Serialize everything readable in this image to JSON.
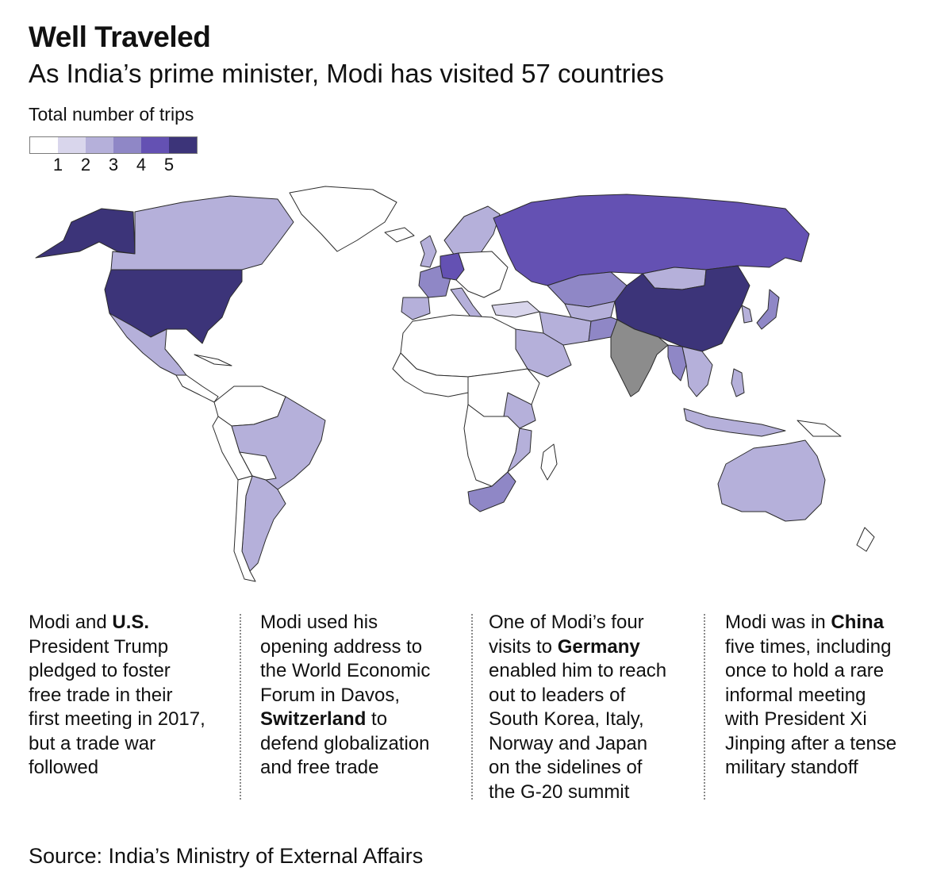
{
  "header": {
    "title": "Well Traveled",
    "subtitle": "As India’s prime minister, Modi has visited 57 countries"
  },
  "legend": {
    "title": "Total number of trips",
    "labels": [
      "1",
      "2",
      "3",
      "4",
      "5"
    ],
    "colors": [
      "#ffffff",
      "#d9d6ec",
      "#b5b0da",
      "#8f87c6",
      "#6451b3",
      "#3c3479"
    ]
  },
  "map": {
    "india_color": "#8c8c8c",
    "country_trips": {
      "United States": 5,
      "China": 5,
      "Russia": 4,
      "Germany": 4,
      "Japan": 3,
      "France": 3,
      "South Africa": 3,
      "Canada": 2,
      "Mexico": 2,
      "Brazil": 2,
      "Argentina": 2,
      "Australia": 2,
      "Mongolia": 2,
      "Kazakhstan": 3,
      "Afghanistan": 3,
      "Iran": 2,
      "Saudi Arabia": 2,
      "Indonesia": 2,
      "Philippines": 2,
      "Kenya": 2,
      "Mozambique": 2,
      "United Kingdom": 2,
      "Sweden": 2,
      "Norway": 2,
      "Finland": 2,
      "Spain": 2,
      "Italy": 2,
      "Nepal": 4,
      "Bangladesh": 3,
      "Myanmar": 3,
      "Vietnam": 2,
      "Singapore": 3,
      "South Korea": 2,
      "Uzbekistan": 2,
      "Israel": 2
    }
  },
  "notes": [
    {
      "parts": [
        {
          "text": "Modi and "
        },
        {
          "text": "U.S.",
          "bold": true
        },
        {
          "text": "\nPresident Trump\npledged to foster\nfree trade in their\nfirst meeting in 2017,\nbut a trade war\nfollowed"
        }
      ]
    },
    {
      "parts": [
        {
          "text": "Modi used his\nopening address to\nthe World Economic\nForum in Davos,\n"
        },
        {
          "text": "Switzerland",
          "bold": true
        },
        {
          "text": " to\ndefend globalization\nand free trade"
        }
      ]
    },
    {
      "parts": [
        {
          "text": "One of Modi’s four\nvisits to "
        },
        {
          "text": "Germany",
          "bold": true
        },
        {
          "text": "\nenabled him to reach\nout to leaders of\nSouth Korea, Italy,\nNorway and Japan\non the sidelines of\nthe G-20 summit"
        }
      ]
    },
    {
      "parts": [
        {
          "text": "Modi was in "
        },
        {
          "text": "China",
          "bold": true
        },
        {
          "text": "\nfive times, including\nonce to hold a rare\ninformal meeting\nwith President Xi\nJinping after a tense\nmilitary standoff"
        }
      ]
    }
  ],
  "footer": {
    "source": "Source: India’s Ministry of External Affairs"
  }
}
